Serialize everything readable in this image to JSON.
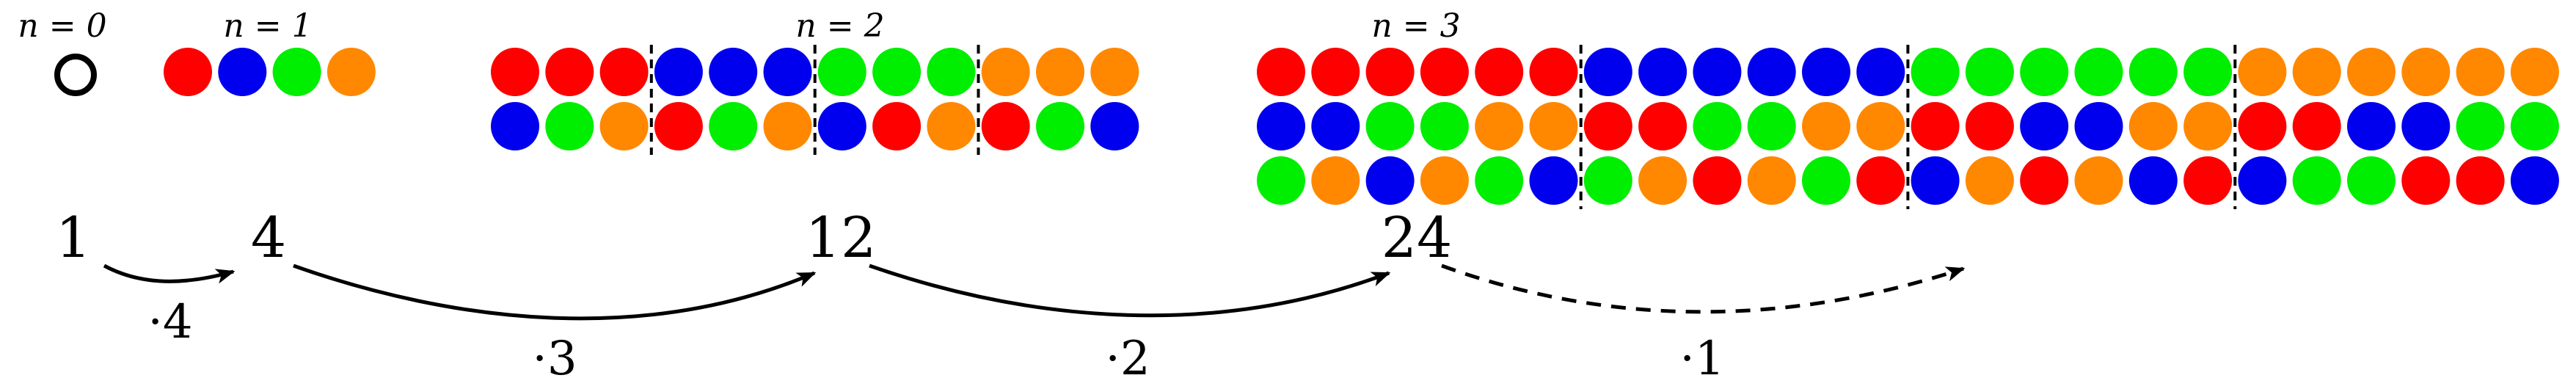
{
  "colors": {
    "red": "#ff0000",
    "blue": "#0000ee",
    "green": "#00ee00",
    "orange": "#ff8800",
    "ink": "#000000"
  },
  "levels": [
    {
      "label": "n = 0",
      "rows": []
    },
    {
      "label": "n = 1",
      "rows": [
        [
          "red",
          "blue",
          "green",
          "orange"
        ]
      ]
    },
    {
      "label": "n = 2",
      "rows": [
        [
          "red",
          "red",
          "red",
          "blue",
          "blue",
          "blue",
          "green",
          "green",
          "green",
          "orange",
          "orange",
          "orange"
        ],
        [
          "blue",
          "green",
          "orange",
          "red",
          "green",
          "orange",
          "blue",
          "red",
          "orange",
          "red",
          "green",
          "blue"
        ]
      ]
    },
    {
      "label": "n = 3",
      "rows": [
        [
          "red",
          "red",
          "red",
          "red",
          "red",
          "red",
          "blue",
          "blue",
          "blue",
          "blue",
          "blue",
          "blue",
          "green",
          "green",
          "green",
          "green",
          "green",
          "green",
          "orange",
          "orange",
          "orange",
          "orange",
          "orange",
          "orange"
        ],
        [
          "blue",
          "blue",
          "green",
          "green",
          "orange",
          "orange",
          "red",
          "red",
          "green",
          "green",
          "orange",
          "orange",
          "red",
          "red",
          "blue",
          "blue",
          "orange",
          "orange",
          "red",
          "red",
          "blue",
          "blue",
          "green",
          "green"
        ],
        [
          "green",
          "orange",
          "blue",
          "orange",
          "green",
          "blue",
          "green",
          "orange",
          "red",
          "orange",
          "green",
          "red",
          "blue",
          "orange",
          "red",
          "orange",
          "blue",
          "red",
          "blue",
          "green",
          "green",
          "red",
          "red",
          "blue"
        ]
      ]
    }
  ],
  "counts": [
    "1",
    "4",
    "12",
    "24"
  ],
  "multipliers": [
    "·4",
    "·3",
    "·2",
    "·1"
  ]
}
